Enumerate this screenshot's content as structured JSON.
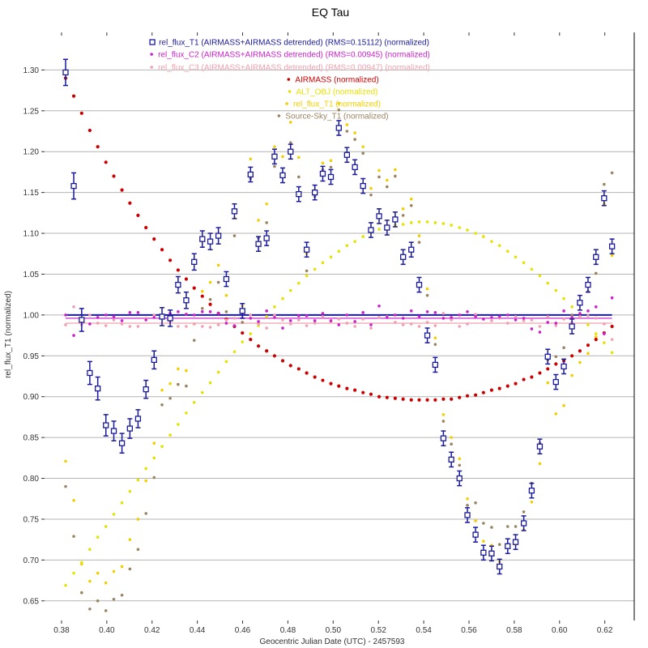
{
  "chart_data": {
    "type": "scatter",
    "title": "EQ Tau",
    "xlabel": "Geocentric Julian Date (UTC) - 2457593",
    "ylabel": "rel_flux_T1 (normalized)",
    "xlim": [
      0.3725,
      0.633
    ],
    "ylim": [
      0.626,
      1.346
    ],
    "x_ticks": [
      "0.38",
      "0.40",
      "0.42",
      "0.44",
      "0.46",
      "0.48",
      "0.50",
      "0.52",
      "0.54",
      "0.56",
      "0.58",
      "0.60",
      "0.62"
    ],
    "y_ticks": [
      "1.30",
      "1.25",
      "1.20",
      "1.15",
      "1.10",
      "1.05",
      "1.00",
      "0.95",
      "0.90",
      "0.85",
      "0.80",
      "0.75",
      "0.70",
      "0.65"
    ],
    "grid": "horizontal",
    "legend_placement": "top-center",
    "x": [
      0.3818,
      0.3854,
      0.3889,
      0.3925,
      0.396,
      0.3996,
      0.4031,
      0.4067,
      0.4102,
      0.4138,
      0.4173,
      0.4209,
      0.4244,
      0.428,
      0.4315,
      0.4351,
      0.4386,
      0.4422,
      0.4457,
      0.4493,
      0.4528,
      0.4564,
      0.4599,
      0.4635,
      0.467,
      0.4706,
      0.4741,
      0.4777,
      0.4812,
      0.4848,
      0.4883,
      0.4919,
      0.4954,
      0.499,
      0.5025,
      0.5061,
      0.5096,
      0.5132,
      0.5167,
      0.5203,
      0.5238,
      0.5274,
      0.5309,
      0.5345,
      0.538,
      0.5416,
      0.5451,
      0.5487,
      0.5522,
      0.5558,
      0.5593,
      0.5629,
      0.5664,
      0.57,
      0.5735,
      0.5771,
      0.5806,
      0.5842,
      0.5877,
      0.5913,
      0.5948,
      0.5984,
      0.6019,
      0.6055,
      0.609,
      0.6126,
      0.6161,
      0.6197,
      0.6232
    ],
    "series": [
      {
        "name": "rel_flux_T1 (AIRMASS+AIRMASS detrended) (RMS=0.15112) (normalized)",
        "color": "#1a1a9c",
        "marker": "open-square",
        "error_bars": true,
        "mean_line": 1.0,
        "values": [
          1.297,
          1.158,
          0.994,
          0.929,
          0.91,
          0.865,
          0.858,
          0.843,
          0.861,
          0.873,
          0.909,
          0.945,
          0.998,
          0.996,
          1.037,
          1.018,
          1.065,
          1.093,
          1.09,
          1.097,
          1.044,
          1.127,
          1.005,
          1.172,
          1.087,
          1.094,
          1.194,
          1.171,
          1.2,
          1.148,
          1.08,
          1.15,
          1.173,
          1.169,
          1.229,
          1.196,
          1.181,
          1.158,
          1.104,
          1.121,
          1.107,
          1.117,
          1.071,
          1.08,
          1.037,
          0.975,
          0.939,
          0.849,
          0.823,
          0.8,
          0.755,
          0.731,
          0.709,
          0.708,
          0.692,
          0.717,
          0.722,
          0.745,
          0.785,
          0.839,
          0.949,
          0.918,
          0.937,
          0.986,
          1.015,
          1.037,
          1.071,
          1.143,
          1.084
        ],
        "errors": [
          0.016,
          0.016,
          0.014,
          0.014,
          0.014,
          0.013,
          0.012,
          0.012,
          0.012,
          0.011,
          0.011,
          0.011,
          0.011,
          0.01,
          0.01,
          0.01,
          0.01,
          0.01,
          0.01,
          0.01,
          0.009,
          0.009,
          0.009,
          0.009,
          0.009,
          0.009,
          0.009,
          0.009,
          0.009,
          0.009,
          0.009,
          0.009,
          0.009,
          0.009,
          0.009,
          0.009,
          0.009,
          0.009,
          0.009,
          0.009,
          0.009,
          0.009,
          0.009,
          0.009,
          0.009,
          0.009,
          0.009,
          0.009,
          0.009,
          0.009,
          0.009,
          0.009,
          0.009,
          0.009,
          0.009,
          0.009,
          0.009,
          0.009,
          0.009,
          0.009,
          0.009,
          0.009,
          0.009,
          0.009,
          0.009,
          0.009,
          0.009,
          0.009,
          0.009
        ]
      },
      {
        "name": "rel_flux_C2 (AIRMASS+AIRMASS detrended) (RMS=0.00945) (normalized)",
        "color": "#cc22cc",
        "marker": "dot",
        "mean_line": 0.996,
        "values": [
          1.0,
          0.975,
          0.993,
          0.989,
          0.997,
          1.0,
          0.998,
          0.993,
          1.003,
          1.003,
          0.994,
          0.997,
          0.996,
          1.002,
          1.004,
          1.001,
          1.0,
          1.004,
          1.004,
          1.002,
          0.99,
          0.987,
          1.002,
          0.996,
          0.992,
          1.005,
          0.997,
          0.984,
          0.993,
          0.999,
          0.999,
          0.993,
          1.002,
          0.993,
          0.988,
          1.0,
          0.992,
          1.003,
          0.988,
          1.011,
          0.997,
          1.0,
          0.996,
          1.005,
          0.998,
          1.004,
          1.003,
          0.996,
          0.997,
          1.0,
          1.004,
          0.998,
          0.995,
          0.997,
          0.998,
          1.0,
          0.994,
          0.996,
          0.983,
          0.979,
          0.991,
          0.99,
          1.005,
          0.997,
          1.002,
          1.005,
          1.01,
          0.977,
          1.021
        ]
      },
      {
        "name": "rel_flux_C3 (AIRMASS+AIRMASS detrended) (RMS=0.00947) (normalized)",
        "color": "#f0a0b0",
        "marker": "dot",
        "mean_line": 0.99,
        "values": [
          0.988,
          1.01,
          0.988,
          1.0,
          0.99,
          0.987,
          0.994,
          0.989,
          0.986,
          0.986,
          0.996,
          1.0,
          0.998,
          0.992,
          0.986,
          0.986,
          0.989,
          0.986,
          0.985,
          0.988,
          0.994,
          0.996,
          0.997,
          1.0,
          0.989,
          0.984,
          1.0,
          0.994,
          0.989,
          0.994,
          0.987,
          0.99,
          0.998,
          0.992,
          0.995,
          0.99,
          0.986,
          0.995,
          0.984,
          0.997,
          0.998,
          0.991,
          0.988,
          0.989,
          0.986,
          0.991,
          0.987,
          1.002,
          0.994,
          0.986,
          0.989,
          1.001,
          0.995,
          0.993,
          0.996,
          0.99,
          0.998,
          0.993,
          0.994,
          0.986,
          0.998,
          0.987,
          0.995,
          0.991,
          0.998,
          0.999,
          0.996,
          0.989,
          0.97
        ]
      },
      {
        "name": "AIRMASS (normalized)",
        "color": "#cc0000",
        "marker": "dot",
        "values": [
          1.29,
          1.268,
          1.247,
          1.226,
          1.206,
          1.187,
          1.17,
          1.153,
          1.137,
          1.122,
          1.107,
          1.093,
          1.08,
          1.067,
          1.055,
          1.044,
          1.033,
          1.023,
          1.013,
          1.002,
          0.995,
          0.986,
          0.978,
          0.97,
          0.962,
          0.956,
          0.95,
          0.944,
          0.938,
          0.934,
          0.929,
          0.924,
          0.92,
          0.916,
          0.913,
          0.91,
          0.908,
          0.905,
          0.903,
          0.9,
          0.899,
          0.898,
          0.897,
          0.896,
          0.896,
          0.896,
          0.896,
          0.897,
          0.897,
          0.899,
          0.901,
          0.902,
          0.905,
          0.908,
          0.91,
          0.913,
          0.916,
          0.921,
          0.924,
          0.929,
          0.934,
          0.94,
          0.944,
          0.95,
          0.956,
          0.963,
          0.97,
          0.978,
          0.986
        ]
      },
      {
        "name": "ALT_OBJ (normalized)",
        "color": "#e6e200",
        "marker": "dot",
        "values": [
          0.669,
          0.684,
          0.697,
          0.713,
          0.728,
          0.741,
          0.756,
          0.77,
          0.784,
          0.798,
          0.812,
          0.825,
          0.839,
          0.853,
          0.866,
          0.88,
          0.893,
          0.905,
          0.917,
          0.93,
          0.943,
          0.955,
          0.967,
          0.977,
          0.987,
          0.998,
          1.01,
          1.02,
          1.03,
          1.039,
          1.048,
          1.056,
          1.064,
          1.071,
          1.078,
          1.085,
          1.09,
          1.096,
          1.101,
          1.105,
          1.108,
          1.11,
          1.111,
          1.113,
          1.114,
          1.114,
          1.113,
          1.112,
          1.11,
          1.107,
          1.104,
          1.1,
          1.096,
          1.09,
          1.085,
          1.078,
          1.071,
          1.064,
          1.056,
          1.048,
          1.039,
          1.03,
          1.02,
          1.01,
          0.998,
          0.988,
          0.977,
          0.966,
          0.954
        ]
      },
      {
        "name": "rel_flux_T1 (normalized)",
        "color": "#f2cf00",
        "marker": "dot",
        "values": [
          0.821,
          0.773,
          0.695,
          0.674,
          0.684,
          0.672,
          0.686,
          0.692,
          0.725,
          0.75,
          0.797,
          0.843,
          0.908,
          0.916,
          0.934,
          0.932,
          0.989,
          1.029,
          1.04,
          1.061,
          1.024,
          1.119,
          1.011,
          1.191,
          1.116,
          1.136,
          1.206,
          1.194,
          1.236,
          1.193,
          1.075,
          1.153,
          1.186,
          1.189,
          1.259,
          1.233,
          1.223,
          1.206,
          1.155,
          1.177,
          1.165,
          1.178,
          1.13,
          1.142,
          1.097,
          1.032,
          0.972,
          0.878,
          0.85,
          0.824,
          0.775,
          0.748,
          0.723,
          0.718,
          0.698,
          0.719,
          0.719,
          0.737,
          0.771,
          0.818,
          0.917,
          0.879,
          0.889,
          0.926,
          0.942,
          0.953,
          0.973,
          1.136,
          1.073
        ]
      },
      {
        "name": "Source-Sky_T1 (normalized)",
        "color": "#9a8462",
        "marker": "dot",
        "values": [
          0.79,
          0.729,
          0.66,
          0.64,
          0.65,
          0.638,
          0.652,
          0.657,
          0.689,
          0.713,
          0.757,
          0.801,
          0.89,
          0.898,
          0.915,
          0.913,
          0.969,
          1.008,
          1.019,
          1.04,
          1.004,
          1.097,
          0.991,
          1.167,
          1.094,
          1.113,
          1.182,
          1.17,
          1.211,
          1.169,
          1.054,
          1.145,
          1.178,
          1.181,
          1.251,
          1.225,
          1.215,
          1.198,
          1.147,
          1.169,
          1.157,
          1.17,
          1.122,
          1.134,
          1.089,
          1.024,
          0.964,
          0.87,
          0.842,
          0.816,
          0.767,
          0.77,
          0.745,
          0.74,
          0.719,
          0.741,
          0.741,
          0.759,
          0.794,
          0.843,
          0.945,
          0.949,
          0.96,
          1.0,
          1.017,
          1.029,
          1.051,
          1.16,
          1.174
        ]
      }
    ]
  }
}
